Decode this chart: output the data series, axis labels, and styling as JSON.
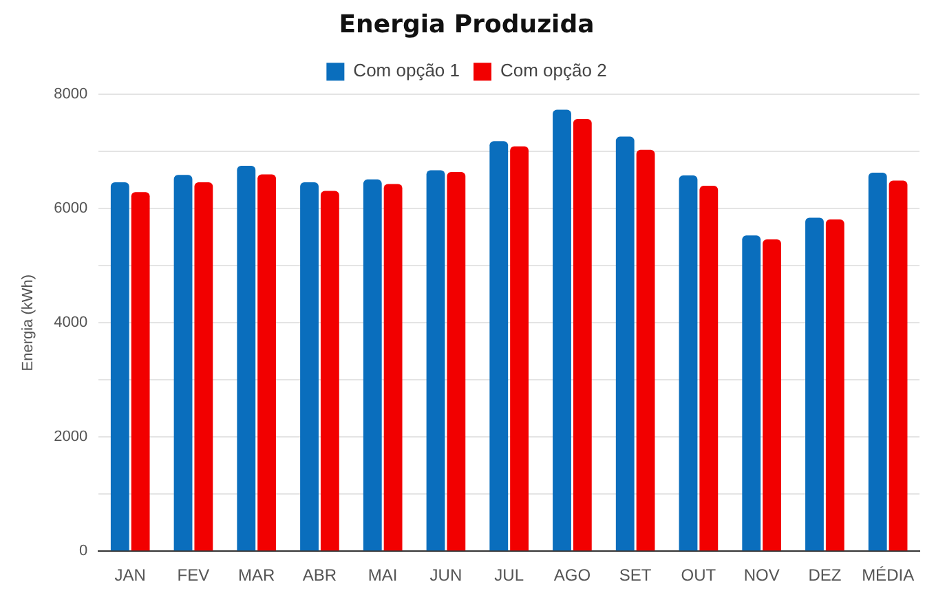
{
  "chart_data": {
    "type": "bar",
    "title": "Energia Produzida",
    "ylabel": "Energia (kWh)",
    "categories": [
      "JAN",
      "FEV",
      "MAR",
      "ABR",
      "MAI",
      "JUN",
      "JUL",
      "AGO",
      "SET",
      "OUT",
      "NOV",
      "DEZ",
      "MÉDIA"
    ],
    "series": [
      {
        "name": "Com opção 1",
        "color": "#0a6ebd",
        "values": [
          6460,
          6590,
          6750,
          6460,
          6510,
          6670,
          7180,
          7730,
          7260,
          6580,
          5530,
          5840,
          6630
        ]
      },
      {
        "name": "Com opção 2",
        "color": "#f20000",
        "values": [
          6290,
          6460,
          6600,
          6310,
          6430,
          6640,
          7090,
          7570,
          7030,
          6400,
          5460,
          5810,
          6490
        ]
      }
    ],
    "ylim": [
      0,
      8000
    ],
    "yticks": [
      0,
      {
        "value": 1000,
        "label": null
      },
      2000,
      {
        "value": 3000,
        "label": null
      },
      4000,
      {
        "value": 5000,
        "label": null
      },
      6000,
      {
        "value": 7000,
        "label": null
      },
      8000
    ],
    "grid": "y",
    "legend": "top"
  }
}
